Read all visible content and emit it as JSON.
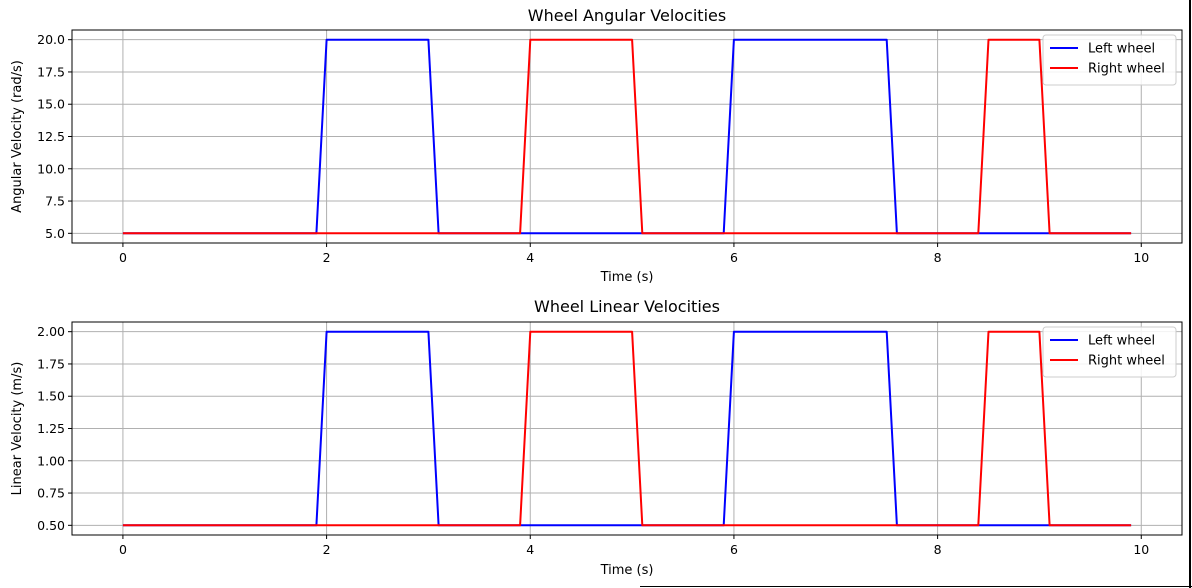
{
  "chart_data": [
    {
      "type": "line",
      "title": "Wheel Angular Velocities",
      "xlabel": "Time (s)",
      "ylabel": "Angular Velocity (rad/s)",
      "xlim": [
        -0.5,
        10.4
      ],
      "ylim": [
        4.25,
        20.75
      ],
      "xticks": [
        0,
        2,
        4,
        6,
        8,
        10
      ],
      "xtick_labels": [
        "0",
        "2",
        "4",
        "6",
        "8",
        "10"
      ],
      "yticks": [
        5.0,
        7.5,
        10.0,
        12.5,
        15.0,
        17.5,
        20.0
      ],
      "ytick_labels": [
        "5.0",
        "7.5",
        "10.0",
        "12.5",
        "15.0",
        "17.5",
        "20.0"
      ],
      "grid": true,
      "legend_position": "top-right",
      "series": [
        {
          "name": "Left wheel",
          "color": "#0000ff",
          "x": [
            0,
            1.9,
            2.0,
            3.0,
            3.1,
            5.9,
            6.0,
            7.5,
            7.6,
            9.9
          ],
          "y": [
            5,
            5,
            20,
            20,
            5,
            5,
            20,
            20,
            5,
            5
          ]
        },
        {
          "name": "Right wheel",
          "color": "#ff0000",
          "x": [
            0,
            3.9,
            4.0,
            5.0,
            5.1,
            8.4,
            8.5,
            9.0,
            9.1,
            9.9
          ],
          "y": [
            5,
            5,
            20,
            20,
            5,
            5,
            20,
            20,
            5,
            5
          ]
        }
      ]
    },
    {
      "type": "line",
      "title": "Wheel Linear Velocities",
      "xlabel": "Time (s)",
      "ylabel": "Linear Velocity (m/s)",
      "xlim": [
        -0.5,
        10.4
      ],
      "ylim": [
        0.425,
        2.075
      ],
      "xticks": [
        0,
        2,
        4,
        6,
        8,
        10
      ],
      "xtick_labels": [
        "0",
        "2",
        "4",
        "6",
        "8",
        "10"
      ],
      "yticks": [
        0.5,
        0.75,
        1.0,
        1.25,
        1.5,
        1.75,
        2.0
      ],
      "ytick_labels": [
        "0.50",
        "0.75",
        "1.00",
        "1.25",
        "1.50",
        "1.75",
        "2.00"
      ],
      "grid": true,
      "legend_position": "top-right",
      "series": [
        {
          "name": "Left wheel",
          "color": "#0000ff",
          "x": [
            0,
            1.9,
            2.0,
            3.0,
            3.1,
            5.9,
            6.0,
            7.5,
            7.6,
            9.9
          ],
          "y": [
            0.5,
            0.5,
            2.0,
            2.0,
            0.5,
            0.5,
            2.0,
            2.0,
            0.5,
            0.5
          ]
        },
        {
          "name": "Right wheel",
          "color": "#ff0000",
          "x": [
            0,
            3.9,
            4.0,
            5.0,
            5.1,
            8.4,
            8.5,
            9.0,
            9.1,
            9.9
          ],
          "y": [
            0.5,
            0.5,
            2.0,
            2.0,
            0.5,
            0.5,
            2.0,
            2.0,
            0.5,
            0.5
          ]
        }
      ]
    }
  ]
}
